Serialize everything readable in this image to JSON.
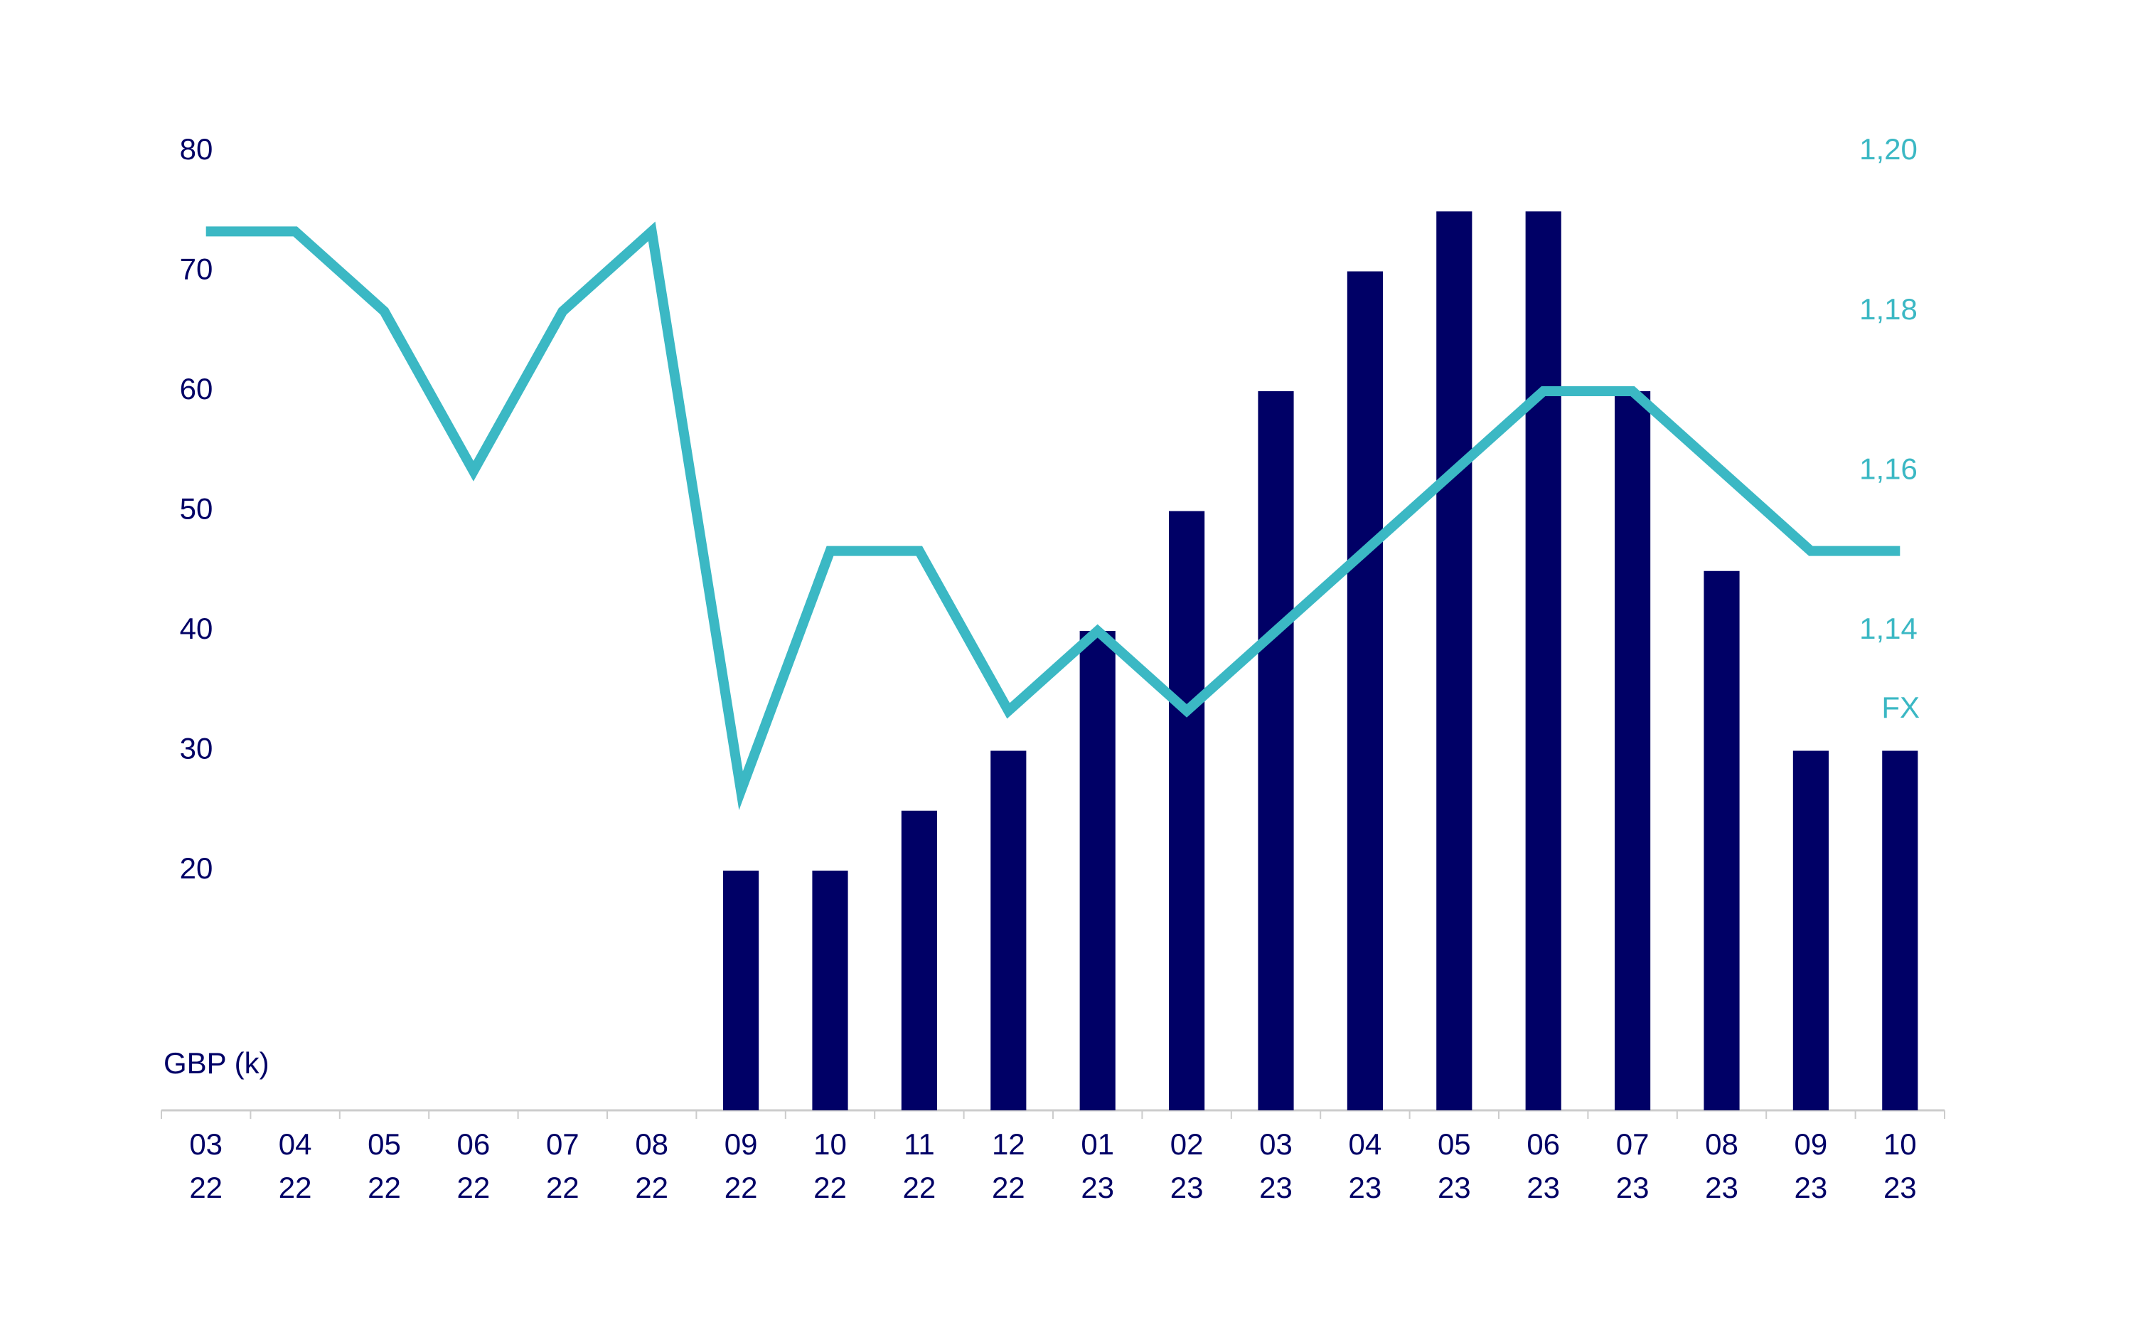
{
  "chart_data": {
    "type": "bar-line",
    "ylabel": "GBP (k)",
    "y2label": "FX",
    "categories": [
      [
        "03",
        "22"
      ],
      [
        "04",
        "22"
      ],
      [
        "05",
        "22"
      ],
      [
        "06",
        "22"
      ],
      [
        "07",
        "22"
      ],
      [
        "08",
        "22"
      ],
      [
        "09",
        "22"
      ],
      [
        "10",
        "22"
      ],
      [
        "11",
        "22"
      ],
      [
        "12",
        "22"
      ],
      [
        "01",
        "23"
      ],
      [
        "02",
        "23"
      ],
      [
        "03",
        "23"
      ],
      [
        "04",
        "23"
      ],
      [
        "05",
        "23"
      ],
      [
        "06",
        "23"
      ],
      [
        "07",
        "23"
      ],
      [
        "08",
        "23"
      ],
      [
        "09",
        "23"
      ],
      [
        "10",
        "23"
      ]
    ],
    "series": [
      {
        "type": "bar",
        "color": "#000066",
        "values": [
          null,
          null,
          null,
          null,
          null,
          null,
          20,
          20,
          25,
          30,
          40,
          50,
          60,
          70,
          75,
          75,
          60,
          45,
          30,
          30
        ]
      },
      {
        "type": "line",
        "axis": "y2",
        "color": "#3bb8c4",
        "values": [
          1.19,
          1.19,
          1.18,
          1.16,
          1.18,
          1.19,
          1.12,
          1.15,
          1.15,
          1.13,
          1.14,
          1.13,
          1.14,
          1.15,
          1.16,
          1.17,
          1.17,
          1.16,
          1.15,
          1.15
        ]
      }
    ],
    "ylim": [
      0,
      80
    ],
    "yticks": [
      20,
      30,
      40,
      50,
      60,
      70,
      80
    ],
    "y2lim": [
      1.08,
      1.2
    ],
    "y2ticks": [
      {
        "value": 1.14,
        "label": "1,14"
      },
      {
        "value": 1.16,
        "label": "1,16"
      },
      {
        "value": 1.18,
        "label": "1,18"
      },
      {
        "value": 1.2,
        "label": "1,20"
      }
    ],
    "grid": false
  }
}
